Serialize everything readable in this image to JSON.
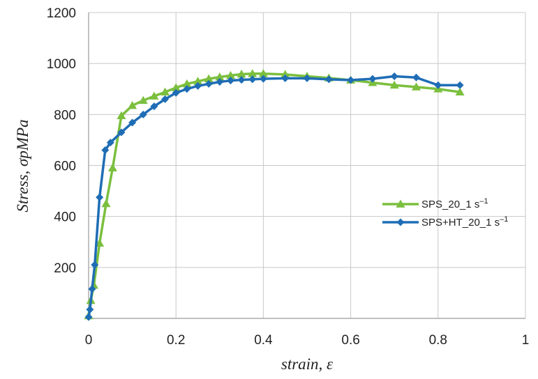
{
  "chart_data": {
    "type": "line",
    "xlabel": "strain, ε",
    "ylabel": "Stress, σpMPa",
    "xlim": [
      0,
      1
    ],
    "ylim": [
      0,
      1200
    ],
    "x_ticks": [
      "0",
      "0.2",
      "0.4",
      "0.6",
      "0.8",
      "1"
    ],
    "y_ticks": [
      "200",
      "400",
      "600",
      "800",
      "1000",
      "1200"
    ],
    "grid": true,
    "legend_position": "right",
    "series": [
      {
        "name": "SPS_20_1 s-1",
        "color": "#7bbf3e",
        "marker": "triangle",
        "x": [
          0,
          0.005,
          0.012,
          0.025,
          0.04,
          0.055,
          0.075,
          0.1,
          0.125,
          0.15,
          0.175,
          0.2,
          0.225,
          0.25,
          0.275,
          0.3,
          0.325,
          0.35,
          0.375,
          0.4,
          0.45,
          0.5,
          0.55,
          0.6,
          0.65,
          0.7,
          0.75,
          0.8,
          0.85
        ],
        "y": [
          10,
          70,
          130,
          295,
          450,
          590,
          795,
          835,
          855,
          872,
          888,
          905,
          920,
          930,
          940,
          947,
          953,
          958,
          960,
          960,
          957,
          950,
          943,
          935,
          925,
          915,
          908,
          900,
          888
        ]
      },
      {
        "name": "SPS+HT_20_1 s-1",
        "color": "#1f6db5",
        "marker": "diamond",
        "x": [
          0,
          0.003,
          0.008,
          0.014,
          0.025,
          0.038,
          0.05,
          0.075,
          0.1,
          0.125,
          0.15,
          0.175,
          0.2,
          0.225,
          0.25,
          0.275,
          0.3,
          0.325,
          0.35,
          0.375,
          0.4,
          0.45,
          0.5,
          0.55,
          0.6,
          0.65,
          0.7,
          0.75,
          0.8,
          0.85
        ],
        "y": [
          5,
          35,
          115,
          210,
          475,
          660,
          690,
          730,
          768,
          800,
          832,
          860,
          885,
          900,
          912,
          920,
          928,
          933,
          936,
          938,
          940,
          942,
          942,
          938,
          935,
          940,
          950,
          945,
          915,
          915
        ]
      }
    ]
  }
}
